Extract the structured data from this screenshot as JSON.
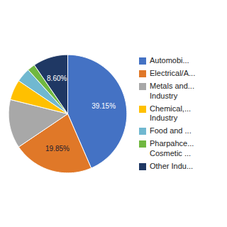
{
  "chart_data": {
    "type": "pie",
    "categories": [
      "Automobi...",
      "Electrical/A...",
      "Metals and...\nIndustry",
      "Chemical,...\nIndustry",
      "Food and ...",
      "Pharpahce...\nCosmetic ...",
      "Other Indu..."
    ],
    "values": [
      39.15,
      19.85,
      12.0,
      5.0,
      3.5,
      1.9,
      8.6
    ],
    "value_labels": [
      "39.15%",
      "19.85%",
      null,
      null,
      null,
      null,
      "8.60%"
    ],
    "data_labels": true,
    "colors": [
      "#4472C4",
      "#E07828",
      "#A8A8A8",
      "#FFC000",
      "#70B8D0",
      "#70B840",
      "#1F3864"
    ],
    "legend": "right"
  }
}
